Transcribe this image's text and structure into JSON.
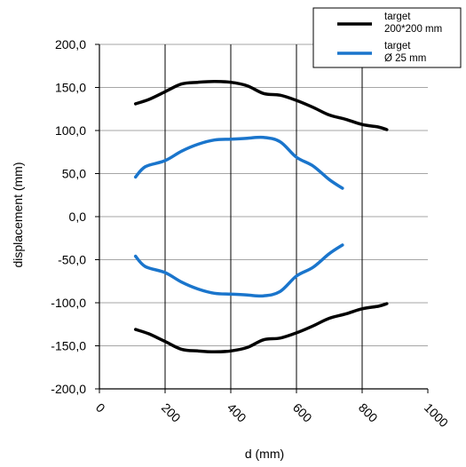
{
  "chart_data": {
    "type": "line",
    "xlabel": "d (mm)",
    "ylabel": "displacement (mm)",
    "xlim": [
      0,
      1000
    ],
    "ylim": [
      -200,
      200
    ],
    "x_ticks": [
      0,
      200,
      400,
      600,
      800,
      1000
    ],
    "x_tick_labels": [
      "0",
      "200",
      "400",
      "600",
      "800",
      "1000"
    ],
    "y_ticks": [
      200,
      150,
      100,
      50,
      0,
      -50,
      -100,
      -150,
      -200
    ],
    "y_tick_labels": [
      "200,0",
      "150,0",
      "100,0",
      "50,0",
      "0,0",
      "-50,0",
      "-100,0",
      "-150,0",
      "-200,0"
    ],
    "grid": "vertical and horizontal",
    "legend_position": "top-right",
    "legend": [
      {
        "color": "#000000",
        "lines": [
          "target",
          "200*200 mm"
        ]
      },
      {
        "color": "#1a75cc",
        "lines": [
          "target",
          "Ø 25 mm"
        ]
      }
    ],
    "series": [
      {
        "name": "target 200*200 mm",
        "color": "#000000",
        "curves": [
          {
            "x": [
              110,
              150,
              200,
              250,
              300,
              350,
              400,
              450,
              500,
              550,
              600,
              650,
              700,
              750,
              800,
              850,
              875
            ],
            "y": [
              131,
              136,
              145,
              154,
              156,
              157,
              156,
              152,
              143,
              141,
              135,
              127,
              118,
              113,
              107,
              104,
              101
            ]
          },
          {
            "x": [
              110,
              150,
              200,
              250,
              300,
              350,
              400,
              450,
              500,
              550,
              600,
              650,
              700,
              750,
              800,
              850,
              875
            ],
            "y": [
              -131,
              -136,
              -145,
              -154,
              -156,
              -157,
              -156,
              -152,
              -143,
              -141,
              -135,
              -127,
              -118,
              -113,
              -107,
              -104,
              -101
            ]
          }
        ]
      },
      {
        "name": "target Ø 25 mm",
        "color": "#1a75cc",
        "curves": [
          {
            "x": [
              110,
              140,
              200,
              250,
              300,
              350,
              400,
              450,
              500,
              550,
              600,
              650,
              700,
              740
            ],
            "y": [
              46,
              58,
              65,
              76,
              84,
              89,
              90,
              91,
              92,
              87,
              69,
              59,
              43,
              33
            ]
          },
          {
            "x": [
              110,
              140,
              200,
              250,
              300,
              350,
              400,
              450,
              500,
              550,
              600,
              650,
              700,
              740
            ],
            "y": [
              -46,
              -58,
              -65,
              -76,
              -84,
              -89,
              -90,
              -91,
              -92,
              -87,
              -69,
              -59,
              -43,
              -33
            ]
          }
        ]
      }
    ]
  }
}
